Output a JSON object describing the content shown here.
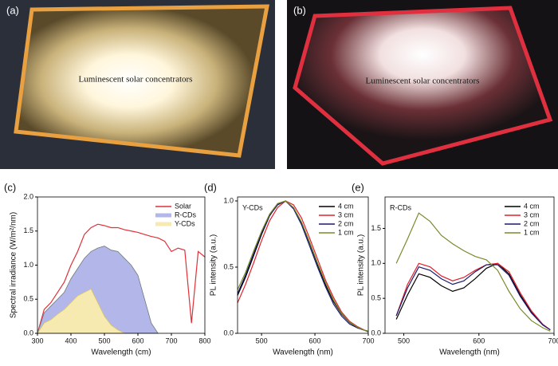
{
  "photos": [
    {
      "label": "(a)",
      "text": "Luminescent solar concentrators"
    },
    {
      "label": "(b)",
      "text": "Luminescent solar concentrators"
    }
  ],
  "chart_data": [
    {
      "type": "line",
      "panel_label": "(c)",
      "xlabel": "Wavelength (cm)",
      "ylabel": "Spectral irradiance (W/m²/nm)",
      "x": [
        300,
        320,
        340,
        360,
        380,
        400,
        420,
        440,
        460,
        480,
        500,
        520,
        540,
        560,
        580,
        600,
        620,
        640,
        660,
        680,
        700,
        720,
        740,
        760,
        780,
        800
      ],
      "series": [
        {
          "name": "Solar",
          "color": "#e0303a",
          "values": [
            0,
            0.35,
            0.45,
            0.6,
            0.75,
            1.0,
            1.2,
            1.45,
            1.55,
            1.6,
            1.58,
            1.55,
            1.55,
            1.52,
            1.5,
            1.48,
            1.45,
            1.42,
            1.4,
            1.35,
            1.2,
            1.25,
            1.22,
            0.15,
            1.2,
            1.12
          ]
        },
        {
          "name": "R-CDs",
          "color": "#6f7a7a",
          "fill": "#b3b6e8",
          "values": [
            0,
            0.3,
            0.4,
            0.5,
            0.6,
            0.8,
            0.95,
            1.1,
            1.2,
            1.25,
            1.28,
            1.22,
            1.2,
            1.1,
            1.0,
            0.85,
            0.5,
            0.15,
            0,
            null,
            null,
            null,
            null,
            null,
            null,
            null
          ]
        },
        {
          "name": "Y-CDs",
          "color": "#d9c56a",
          "fill": "#f6eab0",
          "values": [
            0,
            0.15,
            0.2,
            0.28,
            0.35,
            0.45,
            0.55,
            0.6,
            0.65,
            0.45,
            0.25,
            0.12,
            0.05,
            0,
            null,
            null,
            null,
            null,
            null,
            null,
            null,
            null,
            null,
            null,
            null,
            null
          ]
        }
      ],
      "xlim": [
        300,
        800
      ],
      "xticks": [
        300,
        400,
        500,
        600,
        700,
        800
      ],
      "ylim": [
        0,
        2.0
      ],
      "yticks": [
        {
          "value": 0,
          "label": "0.0"
        },
        0.5,
        {
          "value": 1,
          "label": "1.0"
        },
        1.5,
        {
          "value": 2,
          "label": "2.0"
        }
      ],
      "legend": "upper right"
    },
    {
      "type": "line",
      "panel_label": "(d)",
      "annotation": "Y-CDs",
      "xlabel": "Wavelength (nm)",
      "ylabel": "PL intensity (a.u.)",
      "x": [
        455,
        470,
        485,
        500,
        515,
        530,
        545,
        560,
        575,
        590,
        605,
        620,
        635,
        650,
        665,
        680,
        695,
        700
      ],
      "series": [
        {
          "name": "4 cm",
          "color": "#000000",
          "values": [
            0.286,
            0.424,
            0.585,
            0.747,
            0.887,
            0.976,
            0.998,
            0.948,
            0.835,
            0.683,
            0.519,
            0.366,
            0.239,
            0.145,
            0.082,
            0.043,
            0.021,
            0.016
          ]
        },
        {
          "name": "3 cm",
          "color": "#e0202a",
          "values": [
            0.23,
            0.37,
            0.53,
            0.7,
            0.85,
            0.95,
            1.0,
            0.97,
            0.87,
            0.72,
            0.56,
            0.4,
            0.27,
            0.16,
            0.09,
            0.05,
            0.02,
            0.015
          ]
        },
        {
          "name": "2 cm",
          "color": "#1a1a6e",
          "values": [
            0.3,
            0.44,
            0.6,
            0.76,
            0.89,
            0.97,
            1.0,
            0.94,
            0.82,
            0.66,
            0.5,
            0.35,
            0.22,
            0.13,
            0.07,
            0.04,
            0.02,
            0.01
          ]
        },
        {
          "name": "1 cm",
          "color": "#7a8a2a",
          "values": [
            0.33,
            0.46,
            0.62,
            0.77,
            0.9,
            0.98,
            1.0,
            0.95,
            0.84,
            0.69,
            0.53,
            0.38,
            0.25,
            0.15,
            0.085,
            0.045,
            0.02,
            0.015
          ]
        }
      ],
      "xlim": [
        455,
        700
      ],
      "xticks": [
        500,
        600,
        700
      ],
      "ylim": [
        0,
        1.03
      ],
      "yticks": [
        {
          "value": 0,
          "label": "0.0"
        },
        0.5,
        {
          "value": 1,
          "label": "1.0"
        }
      ],
      "legend": "upper right"
    },
    {
      "type": "line",
      "panel_label": "(e)",
      "annotation": "R-CDs",
      "xlabel": "Wavelength (nm)",
      "ylabel": "PL intensity (a.u.)",
      "x": [
        490,
        505,
        520,
        535,
        550,
        565,
        580,
        595,
        610,
        625,
        640,
        655,
        670,
        685,
        695
      ],
      "series": [
        {
          "name": "4 cm",
          "color": "#000000",
          "values": [
            0.2,
            0.55,
            0.85,
            0.8,
            0.68,
            0.6,
            0.65,
            0.78,
            0.93,
            1.0,
            0.85,
            0.55,
            0.3,
            0.12,
            0.05
          ]
        },
        {
          "name": "3 cm",
          "color": "#e0202a",
          "values": [
            0.25,
            0.7,
            1.0,
            0.95,
            0.82,
            0.75,
            0.8,
            0.9,
            0.98,
            1.0,
            0.88,
            0.58,
            0.32,
            0.13,
            0.05
          ]
        },
        {
          "name": "2 cm",
          "color": "#1a1a6e",
          "values": [
            0.25,
            0.65,
            0.95,
            0.9,
            0.78,
            0.7,
            0.75,
            0.88,
            0.98,
            0.98,
            0.83,
            0.53,
            0.29,
            0.12,
            0.05
          ]
        },
        {
          "name": "1 cm",
          "color": "#7a8a2a",
          "values": [
            1.0,
            1.35,
            1.72,
            1.6,
            1.4,
            1.28,
            1.18,
            1.1,
            1.05,
            0.9,
            0.6,
            0.35,
            0.18,
            0.08,
            0.03
          ]
        }
      ],
      "xlim": [
        475,
        700
      ],
      "xticks": [
        500,
        600,
        700
      ],
      "ylim": [
        0,
        1.95
      ],
      "yticks": [
        {
          "value": 0,
          "label": "0.0"
        },
        0.5,
        {
          "value": 1,
          "label": "1.0"
        },
        1.5
      ],
      "legend": "upper right"
    }
  ]
}
